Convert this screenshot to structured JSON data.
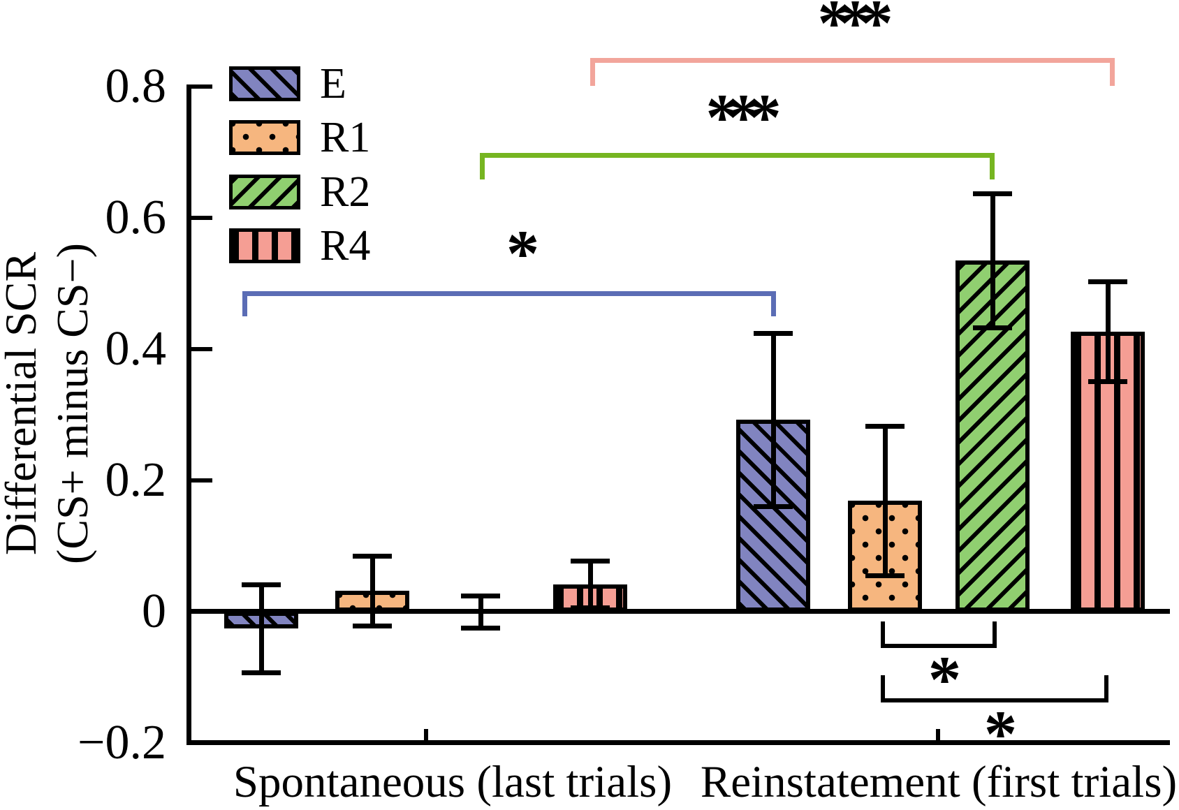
{
  "figure": {
    "y_axis": {
      "title_line1": "Differential SCR",
      "title_line2": "(CS+ minus CS−)",
      "tick_labels": [
        "0.8",
        "0.6",
        "0.4",
        "0.2",
        "0",
        "−0.2"
      ]
    }
  },
  "chart_data": {
    "type": "bar",
    "title": "",
    "categories": [
      "Spontaneous (last trials)",
      "Reinstatement (first trials)"
    ],
    "series": [
      {
        "name": "E",
        "fill": "#8184c0",
        "hatch": "diagonal-back",
        "values": [
          -0.026,
          0.293
        ],
        "errors": [
          0.067,
          0.132
        ]
      },
      {
        "name": "R1",
        "fill": "#f6b67f",
        "hatch": "dots",
        "values": [
          0.032,
          0.169
        ],
        "errors": [
          0.053,
          0.114
        ]
      },
      {
        "name": "R2",
        "fill": "#90cf70",
        "hatch": "diagonal-fwd",
        "values": [
          0.0,
          0.535
        ],
        "errors": [
          0.024,
          0.102
        ]
      },
      {
        "name": "R4",
        "fill": "#f59e94",
        "hatch": "vertical",
        "values": [
          0.042,
          0.427
        ],
        "errors": [
          0.036,
          0.076
        ]
      }
    ],
    "ylabel": "Differential SCR (CS+ minus CS−)",
    "ylim": [
      -0.2,
      0.8
    ],
    "yticks": [
      0.8,
      0.6,
      0.4,
      0.2,
      0,
      -0.2
    ],
    "grid": false,
    "error_bars": true,
    "legend_position": "upper-left-inside",
    "significance": [
      {
        "label": "*",
        "between": "E (Spontaneous) vs E (Reinstatement)",
        "color": "#5b6db5"
      },
      {
        "label": "***",
        "between": "R2 (Spontaneous) vs R2 (Reinstatement)",
        "color": "#76b521"
      },
      {
        "label": "***",
        "between": "R4 (Spontaneous) vs R4 (Reinstatement)",
        "color": "#f2a59b"
      },
      {
        "label": "*",
        "between": "R1 vs R2 (Reinstatement)",
        "color": "#000000"
      },
      {
        "label": "*",
        "between": "R1 vs R4 (Reinstatement)",
        "color": "#000000"
      }
    ]
  }
}
